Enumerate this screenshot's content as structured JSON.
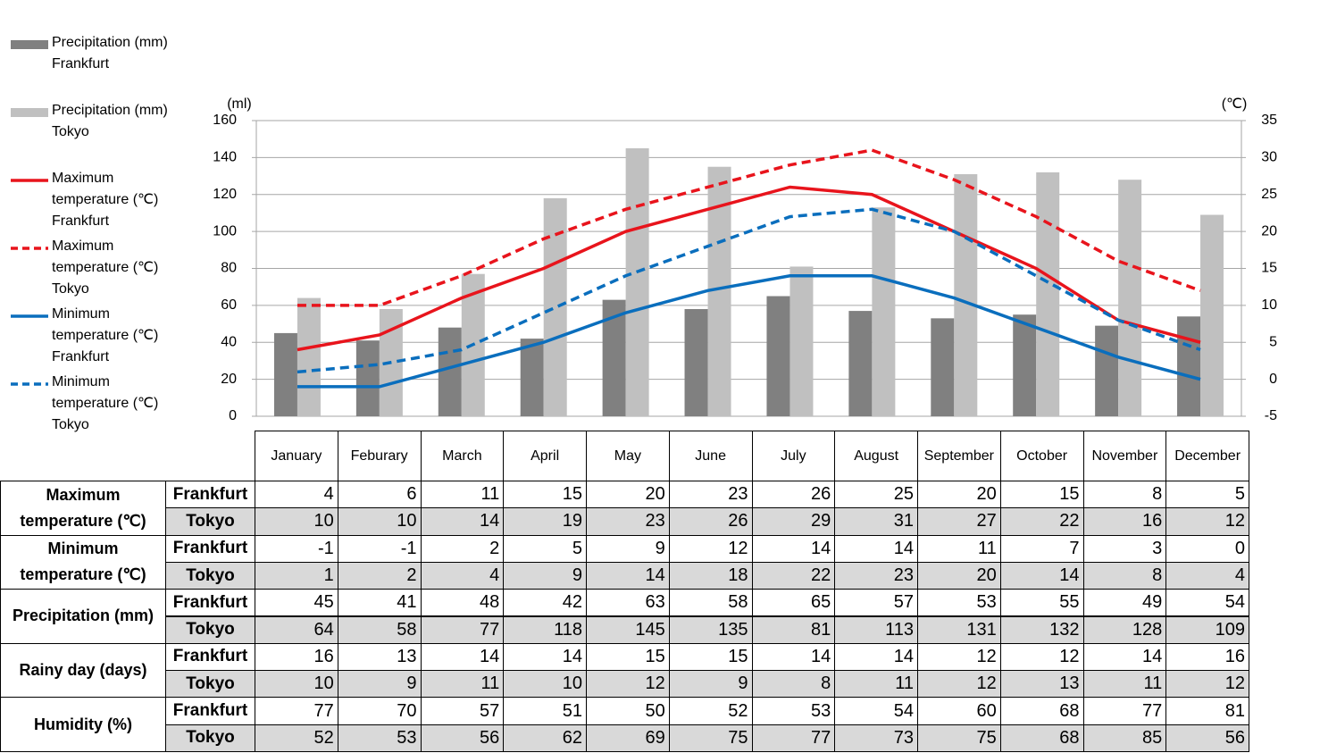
{
  "chart_data": {
    "type": "combo",
    "categories": [
      "January",
      "Feburary",
      "March",
      "April",
      "May",
      "June",
      "July",
      "August",
      "September",
      "October",
      "November",
      "December"
    ],
    "y_label": "(ml)",
    "y2_label": "(℃)",
    "ylim": [
      0,
      160
    ],
    "yticks": [
      0,
      20,
      40,
      60,
      80,
      100,
      120,
      140,
      160
    ],
    "y2lim": [
      -5,
      35
    ],
    "y2ticks": [
      -5,
      0,
      5,
      10,
      15,
      20,
      25,
      30,
      35
    ],
    "grid": true,
    "legend": "left",
    "series": [
      {
        "name": "Precipitation (mm) Frankfurt",
        "type": "bar",
        "color": "#808080",
        "values": [
          45,
          41,
          48,
          42,
          63,
          58,
          65,
          57,
          53,
          55,
          49,
          54
        ]
      },
      {
        "name": "Precipitation (mm) Tokyo",
        "type": "bar",
        "color": "#c0c0c0",
        "values": [
          64,
          58,
          77,
          118,
          145,
          135,
          81,
          113,
          131,
          132,
          128,
          109
        ]
      },
      {
        "name": "Maximum temperature (℃) Frankfurt",
        "type": "line",
        "style": "solid",
        "axis": "y2",
        "color": "#e8141c",
        "values": [
          4,
          6,
          11,
          15,
          20,
          23,
          26,
          25,
          20,
          15,
          8,
          5
        ]
      },
      {
        "name": "Maximum temperature (℃) Tokyo",
        "type": "line",
        "style": "dashed",
        "axis": "y2",
        "color": "#e8141c",
        "values": [
          10,
          10,
          14,
          19,
          23,
          26,
          29,
          31,
          27,
          22,
          16,
          12
        ]
      },
      {
        "name": "Minimum temperature (℃) Frankfurt",
        "type": "line",
        "style": "solid",
        "axis": "y2",
        "color": "#0a6ebd",
        "values": [
          -1,
          -1,
          2,
          5,
          9,
          12,
          14,
          14,
          11,
          7,
          3,
          0
        ]
      },
      {
        "name": "Minimum temperature (℃) Tokyo",
        "type": "line",
        "style": "dashed",
        "axis": "y2",
        "color": "#0a6ebd",
        "values": [
          1,
          2,
          4,
          9,
          14,
          18,
          22,
          23,
          20,
          14,
          8,
          4
        ]
      }
    ]
  },
  "table": {
    "groups": [
      {
        "label": "Maximum temperature (℃)",
        "rows": [
          "Frankfurt",
          "Tokyo"
        ]
      },
      {
        "label": "Minimum temperature (℃)",
        "rows": [
          "Frankfurt",
          "Tokyo"
        ]
      },
      {
        "label": "Precipitation (mm)",
        "rows": [
          "Frankfurt",
          "Tokyo"
        ]
      },
      {
        "label": "Rainy day (days)",
        "rows": [
          "Frankfurt",
          "Tokyo"
        ],
        "values": [
          [
            16,
            13,
            14,
            14,
            15,
            15,
            14,
            14,
            12,
            12,
            14,
            16
          ],
          [
            10,
            9,
            11,
            10,
            12,
            9,
            8,
            11,
            12,
            13,
            11,
            12
          ]
        ]
      },
      {
        "label": "Humidity (%)",
        "rows": [
          "Frankfurt",
          "Tokyo"
        ],
        "values": [
          [
            77,
            70,
            57,
            51,
            50,
            52,
            53,
            54,
            60,
            68,
            77,
            81
          ],
          [
            52,
            53,
            56,
            62,
            69,
            75,
            77,
            73,
            75,
            68,
            85,
            56
          ]
        ]
      }
    ]
  }
}
